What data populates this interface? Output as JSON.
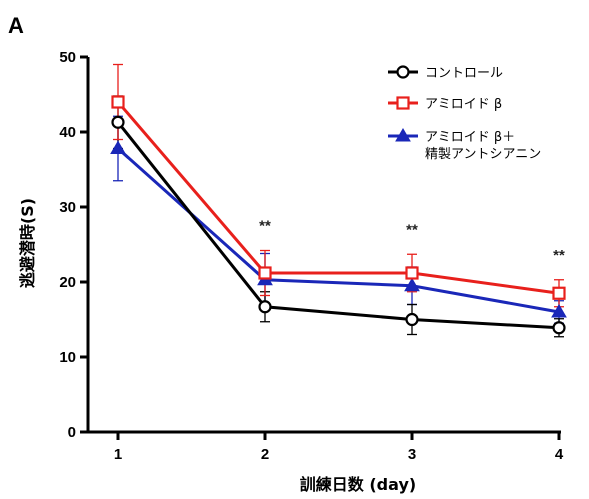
{
  "panel_label": "A",
  "chart_data": {
    "type": "line",
    "xlabel": "訓練日数 (day)",
    "ylabel": "逃避潜時(S)",
    "x": [
      1,
      2,
      3,
      4
    ],
    "xticks": [
      "1",
      "2",
      "3",
      "4"
    ],
    "ylim": [
      0,
      50
    ],
    "yticks": [
      "0",
      "10",
      "20",
      "30",
      "40",
      "50"
    ],
    "grid": false,
    "legend_position": "top-right",
    "series": [
      {
        "name": "コントロール",
        "color": "#000000",
        "marker": "open-circle",
        "values": [
          41.3,
          16.7,
          15.0,
          13.9
        ],
        "error": [
          3.5,
          2.0,
          2.0,
          1.2
        ]
      },
      {
        "name": "アミロイド β",
        "color": "#e8201c",
        "marker": "open-square",
        "values": [
          44.0,
          21.2,
          21.2,
          18.5
        ],
        "error": [
          5.0,
          3.0,
          2.5,
          1.8
        ]
      },
      {
        "name": "アミロイド β＋精製アントシアニン",
        "legend_lines": [
          "アミロイド β＋",
          "精製アントシアニン"
        ],
        "color": "#1a27b8",
        "marker": "filled-triangle",
        "values": [
          37.8,
          20.3,
          19.5,
          16.0
        ],
        "error": [
          4.3,
          3.5,
          2.5,
          1.5
        ]
      }
    ],
    "annotations": [
      {
        "x": 2,
        "text": "**"
      },
      {
        "x": 3,
        "text": "**"
      },
      {
        "x": 4,
        "text": "**"
      }
    ]
  }
}
